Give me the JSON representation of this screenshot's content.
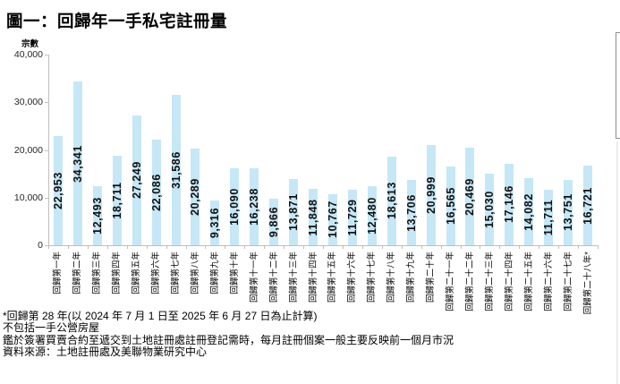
{
  "title": "圖一：回歸年一手私宅註冊量",
  "chart_data": {
    "type": "bar",
    "title": "圖一：回歸年一手私宅註冊量",
    "y_axis_title": "宗數",
    "categories": [
      "回歸第一年",
      "回歸第二年",
      "回歸第三年",
      "回歸第四年",
      "回歸第五年",
      "回歸第六年",
      "回歸第七年",
      "回歸第八年",
      "回歸第九年",
      "回歸第十年",
      "回歸第十一年",
      "回歸第十二年",
      "回歸第十三年",
      "回歸第十四年",
      "回歸第十五年",
      "回歸第十六年",
      "回歸第十七年",
      "回歸第十八年",
      "回歸第十九年",
      "回歸第二十年",
      "回歸第二十一年",
      "回歸第二十二年",
      "回歸第二十三年",
      "回歸第二十四年",
      "回歸第二十五年",
      "回歸第二十六年",
      "回歸第二十七年",
      "回歸第二十八年*"
    ],
    "values": [
      22953,
      34341,
      12493,
      18711,
      27249,
      22086,
      31586,
      20289,
      9316,
      16090,
      16238,
      9866,
      13871,
      11848,
      10767,
      11729,
      12480,
      18613,
      13706,
      20999,
      16565,
      20469,
      15030,
      17146,
      14082,
      11711,
      13751,
      16721
    ],
    "ylim": [
      0,
      40000
    ],
    "yticks": [
      0,
      10000,
      20000,
      30000,
      40000
    ],
    "grid": "off",
    "legend": "none",
    "data_label_position": "center-rotated",
    "bar_color": "#C6E7F6",
    "axis_color": "#BFBFBF"
  },
  "footnotes": [
    "*回歸第 28 年(以 2024 年 7 月 1 日至 2025 年 6 月 27 日為止計算)",
    "不包括一手公營房屋",
    "鑑於簽署買賣合約至遞交到土地註冊處註冊登記需時，每月註冊個案一般主要反映前一個月市況",
    "資料來源：土地註冊處及美聯物業研究中心"
  ]
}
